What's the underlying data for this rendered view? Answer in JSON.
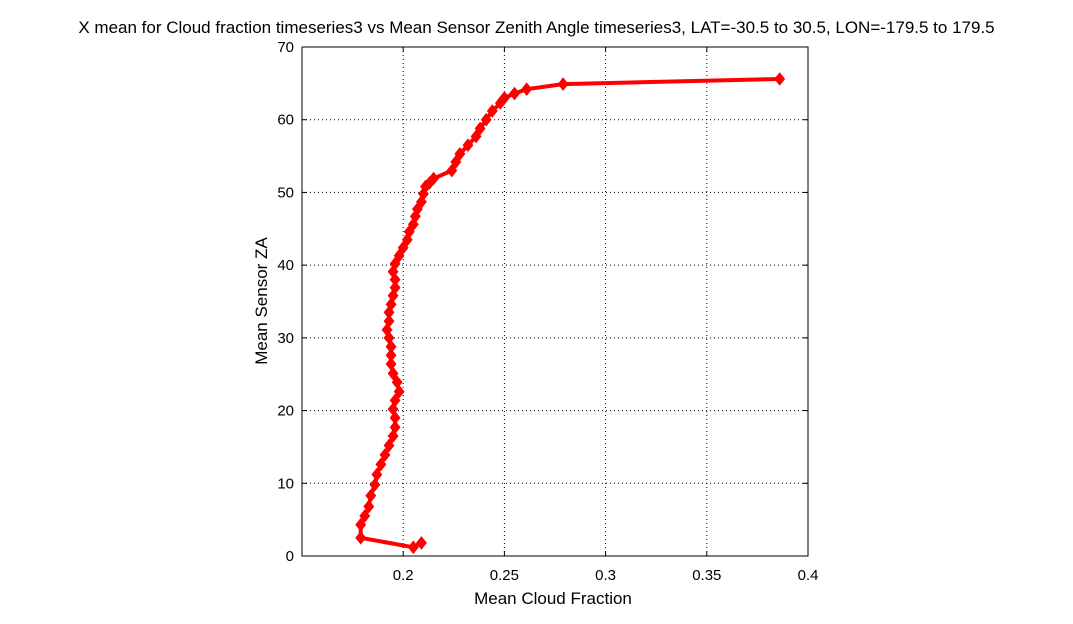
{
  "chart_data": {
    "type": "line",
    "title": "X mean for Cloud fraction timeseries3 vs Mean Sensor Zenith Angle timeseries3, LAT=-30.5 to 30.5, LON=-179.5 to 179.5",
    "xlabel": "Mean Cloud Fraction",
    "ylabel": "Mean Sensor ZA",
    "xlim": [
      0.15,
      0.4
    ],
    "ylim": [
      0,
      70
    ],
    "xticks": [
      0.2,
      0.25,
      0.3,
      0.35,
      0.4
    ],
    "xtick_labels": [
      "0.2",
      "0.25",
      "0.3",
      "0.35",
      "0.4"
    ],
    "yticks": [
      0,
      10,
      20,
      30,
      40,
      50,
      60,
      70
    ],
    "ytick_labels": [
      "0",
      "10",
      "20",
      "30",
      "40",
      "50",
      "60",
      "70"
    ],
    "grid": true,
    "line_color": "#ff0000",
    "marker": "diamond",
    "series": [
      {
        "x": [
          0.209,
          0.205,
          0.179,
          0.179,
          0.181,
          0.183,
          0.184,
          0.186,
          0.187,
          0.189,
          0.191,
          0.193,
          0.195,
          0.196,
          0.196,
          0.195,
          0.196,
          0.198,
          0.197,
          0.195,
          0.194,
          0.194,
          0.194,
          0.193,
          0.192,
          0.193,
          0.193,
          0.194,
          0.195,
          0.196,
          0.196,
          0.195,
          0.196,
          0.198,
          0.2,
          0.202,
          0.203,
          0.205,
          0.206,
          0.207,
          0.209,
          0.21,
          0.211,
          0.213,
          0.215,
          0.224,
          0.226,
          0.228,
          0.232,
          0.236,
          0.238,
          0.241,
          0.244,
          0.248,
          0.25,
          0.255,
          0.261,
          0.279,
          0.386
        ],
        "y": [
          1.8,
          1.2,
          2.5,
          4.3,
          5.5,
          6.8,
          8.3,
          9.8,
          11.2,
          12.6,
          13.9,
          15.2,
          16.5,
          17.7,
          19.0,
          20.2,
          21.4,
          22.6,
          23.9,
          25.1,
          26.4,
          27.6,
          28.8,
          30.0,
          31.1,
          32.3,
          33.5,
          34.6,
          35.8,
          36.9,
          38.0,
          39.1,
          40.2,
          41.3,
          42.4,
          43.5,
          44.6,
          45.6,
          46.7,
          47.7,
          48.7,
          49.8,
          50.8,
          51.3,
          51.9,
          53.0,
          54.2,
          55.3,
          56.5,
          57.7,
          58.8,
          60.0,
          61.2,
          62.3,
          63.0,
          63.6,
          64.2,
          64.9,
          65.6
        ]
      }
    ]
  }
}
